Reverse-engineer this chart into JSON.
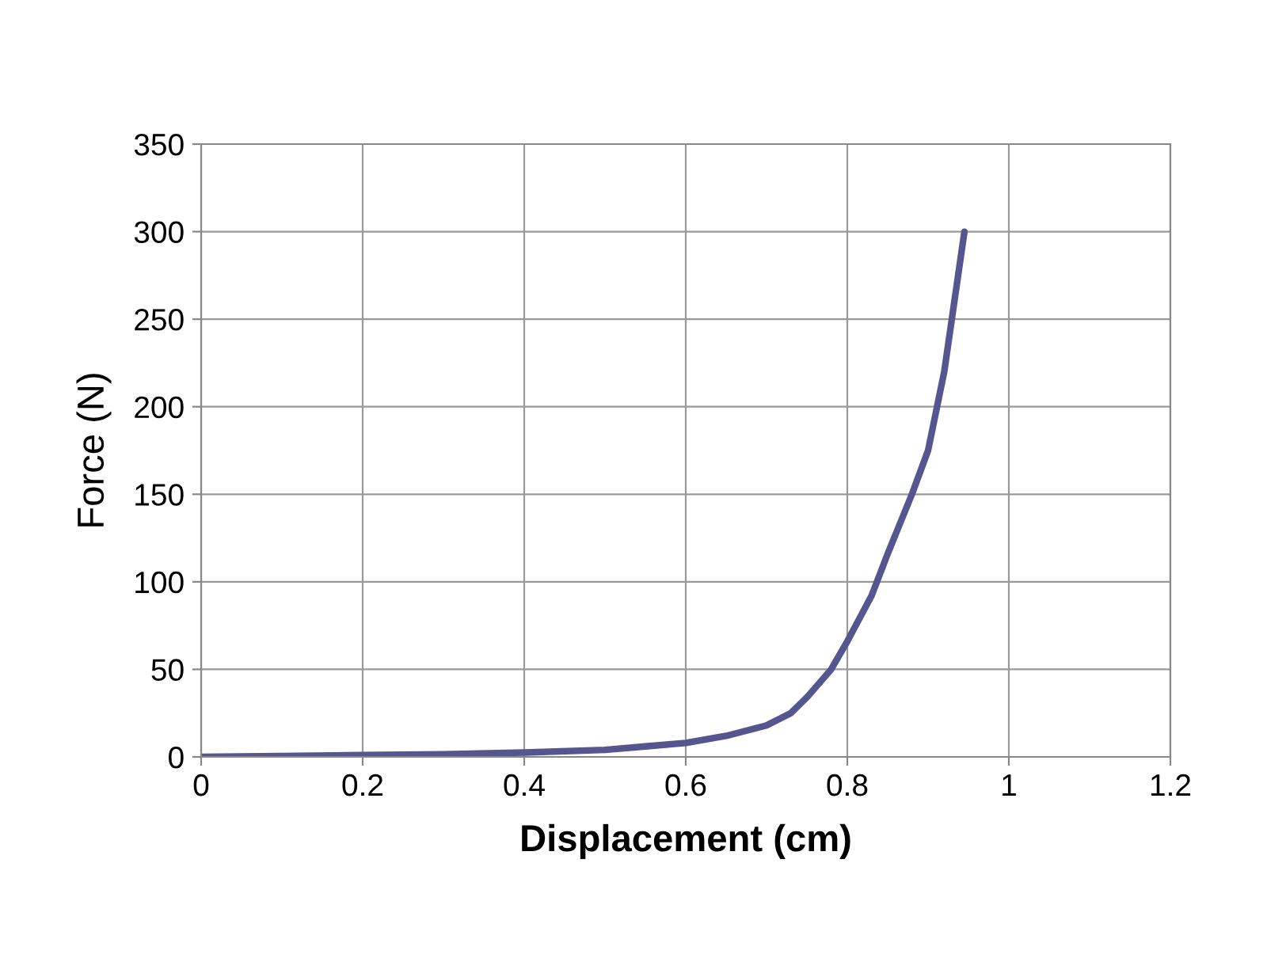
{
  "chart_data": {
    "type": "line",
    "xlabel": "Displacement (cm)",
    "ylabel": "Force (N)",
    "series": [
      {
        "color": "#55558f",
        "x": [
          0,
          0.1,
          0.2,
          0.3,
          0.4,
          0.5,
          0.55,
          0.6,
          0.65,
          0.7,
          0.73,
          0.75,
          0.78,
          0.8,
          0.83,
          0.85,
          0.88,
          0.9,
          0.92,
          0.945
        ],
        "values": [
          0,
          0.5,
          1,
          1.5,
          2.5,
          4,
          6,
          8,
          12,
          18,
          25,
          34,
          50,
          66,
          92,
          116,
          150,
          175,
          220,
          300
        ]
      }
    ],
    "xlim": [
      0,
      1.2
    ],
    "xticks": [
      0,
      0.2,
      0.4,
      0.6,
      0.8,
      1,
      1.2
    ],
    "ylim": [
      0,
      350
    ],
    "yticks": [
      0,
      50,
      100,
      150,
      200,
      250,
      300,
      350
    ],
    "grid": true,
    "legend": false,
    "marker": "none",
    "line_style": "solid"
  }
}
